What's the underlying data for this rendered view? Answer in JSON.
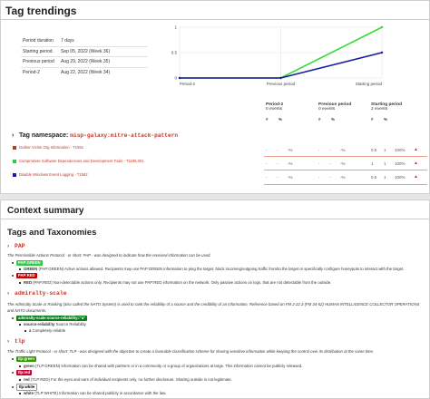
{
  "trendings": {
    "title": "Tag trendings",
    "info": [
      {
        "key": "Period duration",
        "value": "7 days"
      },
      {
        "key": "Starting period",
        "value": "Sep 05, 2022 (Week 36)"
      },
      {
        "key": "Previous period",
        "value": "Aug 29, 2022 (Week 35)"
      },
      {
        "key": "Period-2",
        "value": "Aug 22, 2022 (Week 34)"
      }
    ],
    "chart_data": {
      "type": "line",
      "categories": [
        "Period-2",
        "Previous period",
        "Starting period"
      ],
      "series": [
        {
          "values": [
            0,
            0,
            1
          ],
          "color": "#33dd33"
        },
        {
          "values": [
            0,
            0,
            0.5
          ],
          "color": "#1a1aa6"
        }
      ],
      "ylim": [
        0,
        1
      ],
      "yticks": [
        "0",
        "0.5",
        "1"
      ],
      "grid": true
    },
    "periods": [
      {
        "name": "Period-2",
        "events": "0 events"
      },
      {
        "name": "Previous period",
        "events": "0 events"
      },
      {
        "name": "Starting period",
        "events": "2 events"
      }
    ],
    "col_symbols": [
      "#",
      "%",
      "#",
      "%",
      "#",
      "%"
    ],
    "namespace_label": "Tag namespace:",
    "namespace_value": "misp-galaxy:mitre-attack-pattern",
    "rows": [
      {
        "color": "#c0392b",
        "label": "Gather Victim Org Information - T1591",
        "p2_n": "-",
        "p2_c": "-",
        "p2_p": "-%",
        "pp_n": "-",
        "pp_c": "-",
        "pp_p": "-%",
        "sp_n": "0.5",
        "sp_c": "1",
        "sp_p": "100%",
        "trend": "▲"
      },
      {
        "color": "#2ecc40",
        "label": "Compromise Software Dependencies and Development Tools - T1195.001",
        "p2_n": "-",
        "p2_c": "-",
        "p2_p": "-%",
        "pp_n": "-",
        "pp_c": "-",
        "pp_p": "-%",
        "sp_n": "1",
        "sp_c": "1",
        "sp_p": "100%",
        "trend": "▲"
      },
      {
        "color": "#1a1aa6",
        "label": "Disable Windows Event Logging - T1562",
        "p2_n": "-",
        "p2_c": "-",
        "p2_p": "-%",
        "pp_n": "-",
        "pp_c": "-",
        "pp_p": "-%",
        "sp_n": "0.5",
        "sp_c": "1",
        "sp_p": "100%",
        "trend": "▲"
      }
    ]
  },
  "summary": {
    "title": "Context summary",
    "section": "Tags and Taxonomies",
    "pap": {
      "name": "PAP",
      "desc": "The Permissible Actions Protocol - or short: PAP - was designed to indicate how the received information can be used.",
      "tags": [
        {
          "badge": "PAP:GREEN",
          "bg": "#2ecc40",
          "fg": "#ffffff",
          "sub_name": "GREEN",
          "sub_text": "(PAP:GREEN) Active actions allowed. Recipients may use PAP:GREEN information to ping the target, block incoming/outgoing traffic from/to the target or specifically configure honeypots to interact with the target."
        },
        {
          "badge": "PAP:RED",
          "bg": "#cc0000",
          "fg": "#ffffff",
          "sub_name": "RED",
          "sub_text": "(PAP:RED) Non-detectable actions only. Recipients may not use PAP:RED information on the network. Only passive actions on logs, that are not detectable from the outside."
        }
      ]
    },
    "admiralty": {
      "name": "admiralty-scale",
      "desc": "The Admiralty Scale or Ranking (also called the NATO System) is used to rank the reliability of a source and the credibility of an information. Reference based on FM 2-22.3 (FM 34-52) HUMAN INTELLIGENCE COLLECTOR OPERATIONS and NATO documents.",
      "badge": "admiralty-scale:source-reliability=\"a\"",
      "badge_bg": "#0b7a1b",
      "badge_fg": "#ffffff",
      "sub1_name": "source-reliability",
      "sub1_text": "Source Reliability",
      "sub2_name": "a",
      "sub2_text": "Completely reliable"
    },
    "tlp": {
      "name": "tlp",
      "desc": "The Traffic Light Protocol - or short: TLP - was designed with the objective to create a favorable classification scheme for sharing sensitive information while keeping the control over its distribution at the same time.",
      "tags": [
        {
          "badge": "tlp:green",
          "bg": "#339900",
          "fg": "#ffffff",
          "sub_name": "green",
          "sub_text": "(TLP:GREEN) Information can be shared with partners or in a community or a group of organizations at large. This information cannot be publicly released."
        },
        {
          "badge": "tlp:red",
          "bg": "#cc0033",
          "fg": "#ffffff",
          "sub_name": "red",
          "sub_text": "(TLP:RED) For the eyes and ears of individual recipients only, no further disclosure. Sharing outside is not legitimate."
        },
        {
          "badge": "tlp:white",
          "bg": "#ffffff",
          "fg": "#000000",
          "sub_name": "white",
          "sub_text": "(TLP:WHITE) Information can be shared publicly in accordance with the law."
        }
      ]
    }
  }
}
